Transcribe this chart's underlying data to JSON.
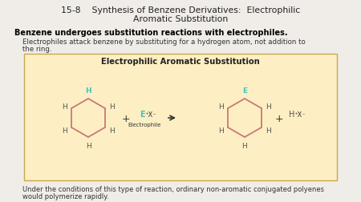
{
  "title_number": "15-8",
  "title_text": "Synthesis of Benzene Derivatives:  Electrophilic\nAromatic Substitution",
  "bold_text": "Benzene undergoes substitution reactions with electrophiles.",
  "body_text1": "Electrophiles attack benzene by substituting for a hydrogen atom, not addition to",
  "body_text2": "the ring.",
  "footer_text1": "Under the conditions of this type of reaction, ordinary non-aromatic conjugated polyenes",
  "footer_text2": "would polymerize rapidly.",
  "box_title": "Electrophilic Aromatic Substitution",
  "box_bg": "#fdefc3",
  "box_edge": "#c8a850",
  "background": "#f0ede8",
  "h_color": "#555555",
  "e_color": "#4bbfbf",
  "bond_color": "#c87878",
  "arrow_color": "#333333",
  "electrophile_label": "Electrophile"
}
